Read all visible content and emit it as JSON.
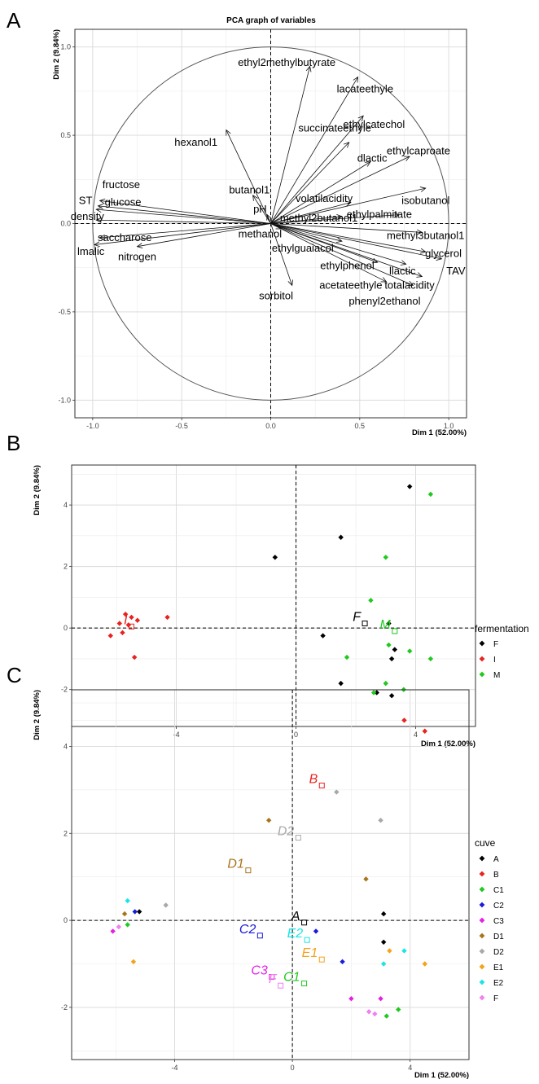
{
  "panels": [
    "A",
    "B",
    "C"
  ],
  "chart_data": [
    {
      "type": "scatter",
      "panel": "A",
      "title": "PCA graph of variables",
      "xlabel": "Dim 1 (52.00%)",
      "ylabel": "Dim 2 (9.84%)",
      "xlim": [
        -1.1,
        1.1
      ],
      "ylim": [
        -1.1,
        1.1
      ],
      "xticks": [
        -1.0,
        -0.5,
        0.0,
        0.5,
        1.0
      ],
      "yticks": [
        -1.0,
        -0.5,
        0.0,
        0.5,
        1.0
      ],
      "xticklabels": [
        "-1.0",
        "-0.5",
        "0.0",
        "0.5",
        "1.0"
      ],
      "yticklabels": [
        "-1.0",
        "-0.5",
        "0.0",
        "0.5",
        "1.0"
      ],
      "grid": true,
      "unit_circle": true,
      "variables": [
        {
          "name": "ethyl2methylbutyrate",
          "x": 0.22,
          "y": 0.89,
          "lx": 0.09,
          "ly": 0.91
        },
        {
          "name": "lacateethyle",
          "x": 0.49,
          "y": 0.83,
          "lx": 0.53,
          "ly": 0.76
        },
        {
          "name": "ethylcatechol",
          "x": 0.52,
          "y": 0.61,
          "lx": 0.58,
          "ly": 0.56
        },
        {
          "name": "hexanol1",
          "x": -0.25,
          "y": 0.53,
          "lx": -0.42,
          "ly": 0.46
        },
        {
          "name": "succinateethyle",
          "x": 0.44,
          "y": 0.46,
          "lx": 0.36,
          "ly": 0.54,
          "noarrow_offset": true
        },
        {
          "name": "ethylcaproate",
          "x": 0.78,
          "y": 0.38,
          "lx": 0.83,
          "ly": 0.41
        },
        {
          "name": "dlactic",
          "x": 0.56,
          "y": 0.35,
          "lx": 0.57,
          "ly": 0.37
        },
        {
          "name": "isobutanol",
          "x": 0.87,
          "y": 0.2,
          "lx": 0.87,
          "ly": 0.13
        },
        {
          "name": "fructose",
          "x": -0.96,
          "y": 0.13,
          "lx": -0.84,
          "ly": 0.22
        },
        {
          "name": "glucose",
          "x": -0.97,
          "y": 0.1,
          "lx": -0.83,
          "ly": 0.12
        },
        {
          "name": "ST",
          "x": -0.98,
          "y": 0.08,
          "lx": -1.04,
          "ly": 0.13
        },
        {
          "name": "butanol1",
          "x": -0.1,
          "y": 0.16,
          "lx": -0.12,
          "ly": 0.19
        },
        {
          "name": "volatilacidity",
          "x": 0.45,
          "y": 0.12,
          "lx": 0.3,
          "ly": 0.14
        },
        {
          "name": "pH",
          "x": -0.02,
          "y": 0.05,
          "lx": -0.06,
          "ly": 0.08
        },
        {
          "name": "methyl2butanol1",
          "x": 0.4,
          "y": 0.04,
          "lx": 0.27,
          "ly": 0.03
        },
        {
          "name": "ethylpalmitate",
          "x": 0.72,
          "y": 0.05,
          "lx": 0.61,
          "ly": 0.05
        },
        {
          "name": "density",
          "x": -0.98,
          "y": 0.02,
          "lx": -1.03,
          "ly": 0.04
        },
        {
          "name": "methyl3butanol1",
          "x": 0.85,
          "y": -0.05,
          "lx": 0.87,
          "ly": -0.07
        },
        {
          "name": "saccharose",
          "x": -0.96,
          "y": -0.08,
          "lx": -0.82,
          "ly": -0.08
        },
        {
          "name": "methanol",
          "x": 0.06,
          "y": -0.03,
          "lx": -0.06,
          "ly": -0.06
        },
        {
          "name": "glycerol",
          "x": 0.87,
          "y": -0.16,
          "lx": 0.97,
          "ly": -0.17
        },
        {
          "name": "lmalic",
          "x": -0.99,
          "y": -0.12,
          "lx": -1.01,
          "ly": -0.16
        },
        {
          "name": "ethylguaiacol",
          "x": 0.4,
          "y": -0.1,
          "lx": 0.18,
          "ly": -0.14
        },
        {
          "name": "nitrogen",
          "x": -0.75,
          "y": -0.13,
          "lx": -0.75,
          "ly": -0.19
        },
        {
          "name": "ethylphenol",
          "x": 0.6,
          "y": -0.22,
          "lx": 0.43,
          "ly": -0.24
        },
        {
          "name": "llactic",
          "x": 0.76,
          "y": -0.23,
          "lx": 0.74,
          "ly": -0.27
        },
        {
          "name": "TAV",
          "x": 0.96,
          "y": -0.2,
          "lx": 1.04,
          "ly": -0.27
        },
        {
          "name": "acetateethyle",
          "x": 0.65,
          "y": -0.33,
          "lx": 0.45,
          "ly": -0.35
        },
        {
          "name": "totalacidity",
          "x": 0.85,
          "y": -0.3,
          "lx": 0.78,
          "ly": -0.35
        },
        {
          "name": "sorbitol",
          "x": 0.12,
          "y": -0.35,
          "lx": 0.03,
          "ly": -0.41
        },
        {
          "name": "phenyl2ethanol",
          "x": 0.8,
          "y": -0.35,
          "lx": 0.64,
          "ly": -0.44
        }
      ]
    },
    {
      "type": "scatter",
      "panel": "B",
      "xlabel": "Dim 1 (52.00%)",
      "ylabel": "Dim 2 (9.84%)",
      "xlim": [
        -7.5,
        6
      ],
      "ylim": [
        -3.2,
        5.3
      ],
      "xticks": [
        -4,
        0,
        4
      ],
      "yticks": [
        -2,
        0,
        2,
        4
      ],
      "xticklabels": [
        "-4",
        "0",
        "4"
      ],
      "yticklabels": [
        "-2",
        "0",
        "2",
        "4"
      ],
      "grid": true,
      "legend_title": "fermentation",
      "legend_position": "right",
      "series": [
        {
          "name": "F",
          "color": "#000000",
          "centroid": {
            "label": "F",
            "x": 2.3,
            "y": 0.15
          },
          "points": [
            [
              3.8,
              4.6
            ],
            [
              1.5,
              2.95
            ],
            [
              -0.7,
              2.3
            ],
            [
              3.1,
              0.15
            ],
            [
              0.9,
              -0.25
            ],
            [
              3.3,
              -0.7
            ],
            [
              3.2,
              -1.0
            ],
            [
              1.5,
              -1.8
            ],
            [
              2.7,
              -2.1
            ],
            [
              3.2,
              -2.2
            ]
          ]
        },
        {
          "name": "I",
          "color": "#e8221f",
          "centroid": {
            "label": "I",
            "x": -5.5,
            "y": 0.05
          },
          "points": [
            [
              -5.7,
              0.45
            ],
            [
              -5.5,
              0.35
            ],
            [
              -5.3,
              0.25
            ],
            [
              -5.9,
              0.15
            ],
            [
              -5.6,
              0.1
            ],
            [
              -5.8,
              -0.15
            ],
            [
              -6.2,
              -0.25
            ],
            [
              -4.3,
              0.35
            ],
            [
              -5.4,
              -0.95
            ]
          ]
        },
        {
          "name": "M",
          "color": "#1fc91f",
          "centroid": {
            "label": "M",
            "x": 3.3,
            "y": -0.1
          },
          "points": [
            [
              4.5,
              4.35
            ],
            [
              3.0,
              2.3
            ],
            [
              2.5,
              0.9
            ],
            [
              3.1,
              -0.55
            ],
            [
              3.8,
              -0.75
            ],
            [
              1.7,
              -0.95
            ],
            [
              4.5,
              -1.0
            ],
            [
              3.0,
              -1.8
            ],
            [
              3.6,
              -2.0
            ],
            [
              2.6,
              -2.1
            ]
          ]
        }
      ]
    },
    {
      "type": "scatter",
      "panel": "C",
      "xlabel": "Dim 1 (52.00%)",
      "ylabel": "Dim 2 (9.84%)",
      "xlim": [
        -7.5,
        6
      ],
      "ylim": [
        -3.2,
        5.3
      ],
      "xticks": [
        -4,
        0,
        4
      ],
      "yticks": [
        -2,
        0,
        2,
        4
      ],
      "xticklabels": [
        "-4",
        "0",
        "4"
      ],
      "yticklabels": [
        "-2",
        "0",
        "2",
        "4"
      ],
      "grid": true,
      "legend_title": "cuve",
      "legend_position": "right",
      "series": [
        {
          "name": "A",
          "color": "#000000",
          "centroid": {
            "label": "A",
            "x": 0.4,
            "y": -0.05
          },
          "points": [
            [
              -5.2,
              0.2
            ],
            [
              3.1,
              0.15
            ],
            [
              3.1,
              -0.5
            ]
          ]
        },
        {
          "name": "B",
          "color": "#e8221f",
          "centroid": {
            "label": "B",
            "x": 1.0,
            "y": 3.1
          },
          "points": [
            [
              3.8,
              4.6
            ],
            [
              4.5,
              4.35
            ]
          ]
        },
        {
          "name": "C1",
          "color": "#1fc91f",
          "centroid": {
            "label": "C1",
            "x": 0.4,
            "y": -1.45
          },
          "points": [
            [
              -5.6,
              -0.1
            ],
            [
              3.6,
              -2.05
            ],
            [
              3.2,
              -2.2
            ]
          ]
        },
        {
          "name": "C2",
          "color": "#1a1adc",
          "centroid": {
            "label": "C2",
            "x": -1.1,
            "y": -0.35
          },
          "points": [
            [
              -5.35,
              0.2
            ],
            [
              0.8,
              -0.25
            ],
            [
              1.7,
              -0.95
            ]
          ]
        },
        {
          "name": "C3",
          "color": "#e520e5",
          "centroid": {
            "label": "C3",
            "x": -0.7,
            "y": -1.3
          },
          "points": [
            [
              -6.1,
              -0.25
            ],
            [
              2.0,
              -1.8
            ],
            [
              3.0,
              -1.8
            ]
          ]
        },
        {
          "name": "D1",
          "color": "#a8741b",
          "centroid": {
            "label": "D1",
            "x": -1.5,
            "y": 1.15
          },
          "points": [
            [
              -5.7,
              0.15
            ],
            [
              -0.8,
              2.3
            ],
            [
              2.5,
              0.95
            ]
          ]
        },
        {
          "name": "D2",
          "color": "#a8a8a8",
          "centroid": {
            "label": "D2",
            "x": 0.2,
            "y": 1.9
          },
          "points": [
            [
              -4.3,
              0.35
            ],
            [
              1.5,
              2.95
            ],
            [
              3.0,
              2.3
            ]
          ]
        },
        {
          "name": "E1",
          "color": "#f5a21b",
          "centroid": {
            "label": "E1",
            "x": 1.0,
            "y": -0.9
          },
          "points": [
            [
              -5.4,
              -0.95
            ],
            [
              3.3,
              -0.7
            ],
            [
              4.5,
              -1.0
            ]
          ]
        },
        {
          "name": "E2",
          "color": "#19e5e5",
          "centroid": {
            "label": "E2",
            "x": 0.5,
            "y": -0.45
          },
          "points": [
            [
              -5.6,
              0.45
            ],
            [
              3.8,
              -0.7
            ],
            [
              3.1,
              -1.0
            ]
          ]
        },
        {
          "name": "F",
          "color": "#f07ff0",
          "centroid": {
            "label": "F",
            "x": -0.4,
            "y": -1.5
          },
          "points": [
            [
              -5.9,
              -0.15
            ],
            [
              2.6,
              -2.1
            ],
            [
              2.8,
              -2.15
            ]
          ]
        }
      ]
    }
  ]
}
